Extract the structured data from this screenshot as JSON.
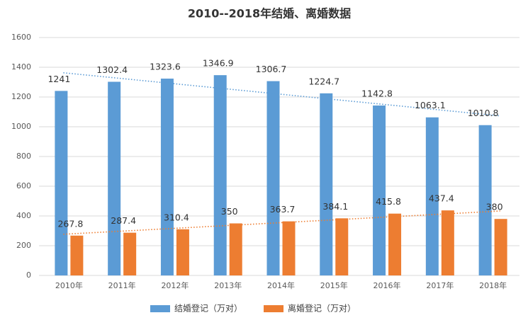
{
  "chart_data": {
    "type": "bar",
    "title": "2010--2018年结婚、离婚数据",
    "categories": [
      "2010年",
      "2011年",
      "2012年",
      "2013年",
      "2014年",
      "2015年",
      "2016年",
      "2017年",
      "2018年"
    ],
    "series": [
      {
        "name": "结婚登记（万对）",
        "color": "#5b9bd5",
        "values": [
          1241,
          1302.4,
          1323.6,
          1346.9,
          1306.7,
          1224.7,
          1142.8,
          1063.1,
          1010.8
        ]
      },
      {
        "name": "离婚登记（万对）",
        "color": "#ed7d31",
        "values": [
          267.8,
          287.4,
          310.4,
          350,
          363.7,
          384.1,
          415.8,
          437.4,
          380
        ]
      }
    ],
    "ylim": [
      0,
      1600
    ],
    "yticks": [
      0,
      200,
      400,
      600,
      800,
      1000,
      1200,
      1400,
      1600
    ],
    "grid": true,
    "trendline": true,
    "legend": "bottom"
  }
}
